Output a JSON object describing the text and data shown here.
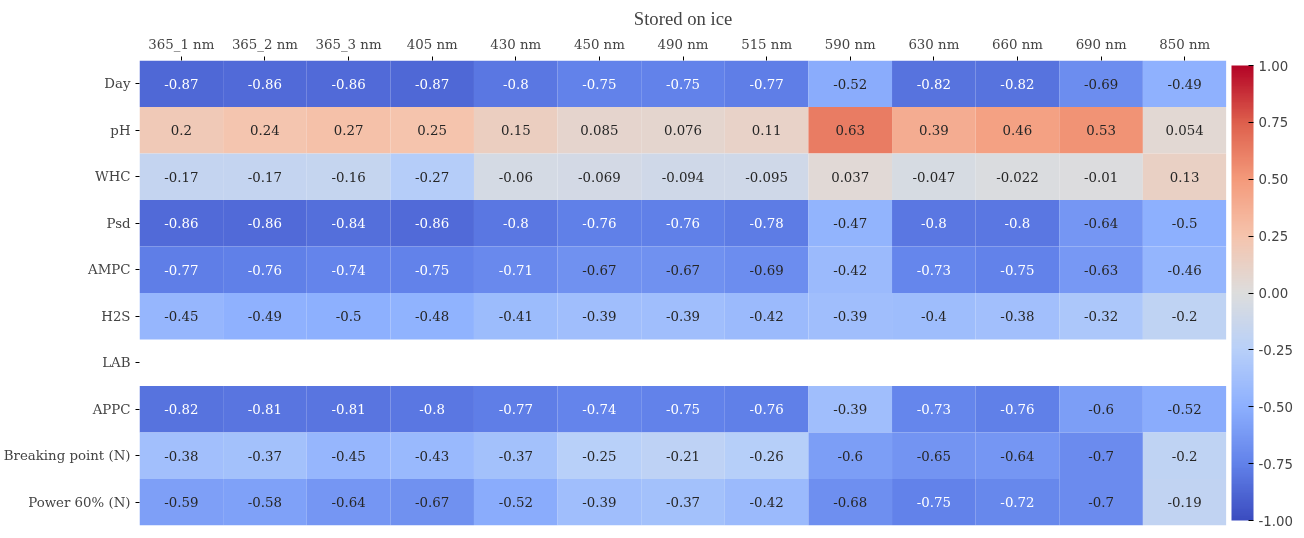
{
  "chart_data": {
    "type": "heatmap",
    "title": "Stored on ice",
    "categories": [
      "365_1 nm",
      "365_2 nm",
      "365_3 nm",
      "405 nm",
      "430 nm",
      "450 nm",
      "490 nm",
      "515 nm",
      "590 nm",
      "630 nm",
      "660 nm",
      "690 nm",
      "850 nm"
    ],
    "y_categories": [
      "Day",
      "pH",
      "WHC",
      "Psd",
      "AMPC",
      "H2S",
      "LAB",
      "APPC",
      "Breaking point (N)",
      "Power 60% (N)"
    ],
    "cells": [
      [
        -0.87,
        -0.86,
        -0.86,
        -0.87,
        -0.8,
        -0.75,
        -0.75,
        -0.77,
        -0.52,
        -0.82,
        -0.82,
        -0.69,
        -0.49
      ],
      [
        0.2,
        0.24,
        0.27,
        0.25,
        0.15,
        0.085,
        0.076,
        0.11,
        0.63,
        0.39,
        0.46,
        0.53,
        0.054
      ],
      [
        -0.17,
        -0.17,
        -0.16,
        -0.27,
        -0.06,
        -0.069,
        -0.094,
        -0.095,
        0.037,
        -0.047,
        -0.022,
        -0.01,
        0.13
      ],
      [
        -0.86,
        -0.86,
        -0.84,
        -0.86,
        -0.8,
        -0.76,
        -0.76,
        -0.78,
        -0.47,
        -0.8,
        -0.8,
        -0.64,
        -0.5
      ],
      [
        -0.77,
        -0.76,
        -0.74,
        -0.75,
        -0.71,
        -0.67,
        -0.67,
        -0.69,
        -0.42,
        -0.73,
        -0.75,
        -0.63,
        -0.46
      ],
      [
        -0.45,
        -0.49,
        -0.5,
        -0.48,
        -0.41,
        -0.39,
        -0.39,
        -0.42,
        -0.39,
        -0.4,
        -0.38,
        -0.32,
        -0.2
      ],
      [
        null,
        null,
        null,
        null,
        null,
        null,
        null,
        null,
        null,
        null,
        null,
        null,
        null
      ],
      [
        -0.82,
        -0.81,
        -0.81,
        -0.8,
        -0.77,
        -0.74,
        -0.75,
        -0.76,
        -0.39,
        -0.73,
        -0.76,
        -0.6,
        -0.52
      ],
      [
        -0.38,
        -0.37,
        -0.45,
        -0.43,
        -0.37,
        -0.25,
        -0.21,
        -0.26,
        -0.6,
        -0.65,
        -0.64,
        -0.7,
        -0.2
      ],
      [
        -0.59,
        -0.58,
        -0.64,
        -0.67,
        -0.52,
        -0.39,
        -0.37,
        -0.42,
        -0.68,
        -0.75,
        -0.72,
        -0.7,
        -0.19
      ]
    ],
    "data_labels": true,
    "clim": [
      -1,
      1
    ],
    "cticks": [
      {
        "value": -1,
        "label": "-1.00"
      },
      {
        "value": -0.75,
        "label": "-0.75"
      },
      {
        "value": -0.5,
        "label": "-0.50"
      },
      {
        "value": -0.25,
        "label": "-0.25"
      },
      {
        "value": 0,
        "label": "0.00"
      },
      {
        "value": 0.25,
        "label": "0.25"
      },
      {
        "value": 0.5,
        "label": "0.50"
      },
      {
        "value": 0.75,
        "label": "0.75"
      },
      {
        "value": 1,
        "label": "1.00"
      }
    ]
  }
}
